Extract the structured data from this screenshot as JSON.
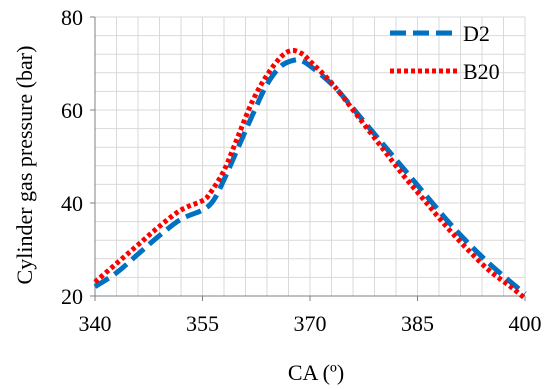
{
  "chart_data": {
    "type": "line",
    "title": "",
    "xlabel": "CA (º)",
    "ylabel": "Cylinder  gas pressure (bar)",
    "xlim": [
      340,
      400
    ],
    "ylim": [
      20,
      80
    ],
    "x_ticks": [
      "340",
      "355",
      "370",
      "385",
      "400"
    ],
    "y_ticks": [
      "20",
      "40",
      "60",
      "80"
    ],
    "grid": true,
    "legend_position": "top-right",
    "series": [
      {
        "name": "D2",
        "color": "#0070C0",
        "style": "dashed",
        "x": [
          340,
          343,
          346,
          349,
          352,
          355,
          356.5,
          358,
          360,
          362,
          364,
          366,
          368,
          369,
          370,
          372,
          374,
          377,
          380,
          383,
          386,
          389,
          392,
          395,
          398,
          400
        ],
        "y": [
          22,
          25,
          29,
          33,
          36.5,
          38.5,
          40.5,
          45,
          52,
          59,
          65.5,
          69.5,
          70.8,
          70.5,
          69.5,
          67,
          64,
          58.5,
          53,
          47.5,
          42,
          36.5,
          31.5,
          27,
          23,
          20.5
        ]
      },
      {
        "name": "B20",
        "color": "#FF0000",
        "style": "dotted",
        "x": [
          340,
          343,
          346,
          349,
          352,
          355,
          356,
          358,
          360,
          362,
          364,
          366,
          367.5,
          369,
          370,
          372,
          374,
          377,
          380,
          383,
          386,
          389,
          392,
          395,
          398,
          400
        ],
        "y": [
          23,
          27,
          31,
          35,
          38.5,
          40.5,
          42,
          47,
          54.5,
          62,
          67.5,
          71.5,
          72.8,
          72,
          70.5,
          67.5,
          64,
          58,
          52,
          46,
          40.5,
          35,
          30,
          25.5,
          22,
          19.5
        ]
      }
    ]
  }
}
